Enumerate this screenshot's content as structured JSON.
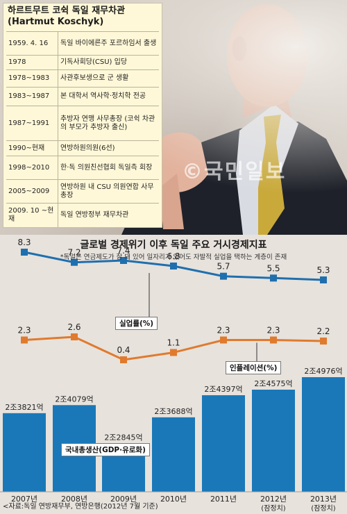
{
  "card": {
    "title_line1": "하르트무트 코쉭 독일 재무차관",
    "title_line2": "(Hartmut Koschyk)",
    "rows": [
      {
        "date": "1959. 4. 16",
        "text": "독일 바이에른주 포르하임서 출생"
      },
      {
        "date": "1978",
        "text": "기독사회당(CSU) 입당"
      },
      {
        "date": "1978~1983",
        "text": "사관후보생으로 군 생활"
      },
      {
        "date": "1983~1987",
        "text": "본 대학서 역사학·정치학 전공"
      },
      {
        "date": "1987~1991",
        "text": "추방자 연맹 사무총장 (코쉭 차관의 부모가 추방자 출신)"
      },
      {
        "date": "1990~현재",
        "text": "연방하원의원(6선)"
      },
      {
        "date": "1998~2010",
        "text": "한·독 의원친선협회 독일측 회장"
      },
      {
        "date": "2005~2009",
        "text": "연방하원 내 CSU 의원연합 사무총장"
      },
      {
        "date": "2009. 10 ~현재",
        "text": "독일 연방정부 재무차관"
      }
    ]
  },
  "watermark": "©국민일보",
  "chart_header": {
    "title": "글로벌 경제위기 이후 독일 주요 거시경제지표",
    "note": "*독일은 연금제도가 잘 돼 있어 일자리가 있어도 자발적 실업을 택하는 계층이 존재"
  },
  "source": "<자료:독일 연방재무부, 연방은행(2012년 7월 기준)",
  "colors": {
    "unemployment": "#1f6fae",
    "inflation": "#e07a2e",
    "gdp": "#1a78b8",
    "background": "#e7e2dc"
  },
  "chart_data": [
    {
      "type": "line",
      "categories": [
        "2007년",
        "2008년",
        "2009년",
        "2010년",
        "2011년",
        "2012년 (잠정치)",
        "2013년 (잠정치)"
      ],
      "series": [
        {
          "name": "실업률(%)",
          "values": [
            8.3,
            7.2,
            7.4,
            6.8,
            5.7,
            5.5,
            5.3
          ],
          "labels": [
            "8.3",
            "7.2",
            "7.4",
            "6.8",
            "5.7",
            "5.5",
            "5.3"
          ]
        },
        {
          "name": "인플레이션(%)",
          "values": [
            2.3,
            2.6,
            0.4,
            1.1,
            2.3,
            2.3,
            2.2
          ],
          "labels": [
            "2.3",
            "2.6",
            "0.4",
            "1.1",
            "2.3",
            "2.3",
            "2.2"
          ]
        }
      ]
    },
    {
      "type": "bar",
      "categories": [
        "2007년",
        "2008년",
        "2009년",
        "2010년",
        "2011년",
        "2012년 (잠정치)",
        "2013년 (잠정치)"
      ],
      "series": [
        {
          "name": "국내총생산(GDP·유로화)",
          "values": [
            23821,
            24079,
            22845,
            23688,
            24397,
            24575,
            24976
          ],
          "labels": [
            "2조3821억",
            "2조4079억",
            "2조2845억",
            "2조3688억",
            "2조4397억",
            "2조4575억",
            "2조4976억"
          ]
        }
      ]
    }
  ]
}
